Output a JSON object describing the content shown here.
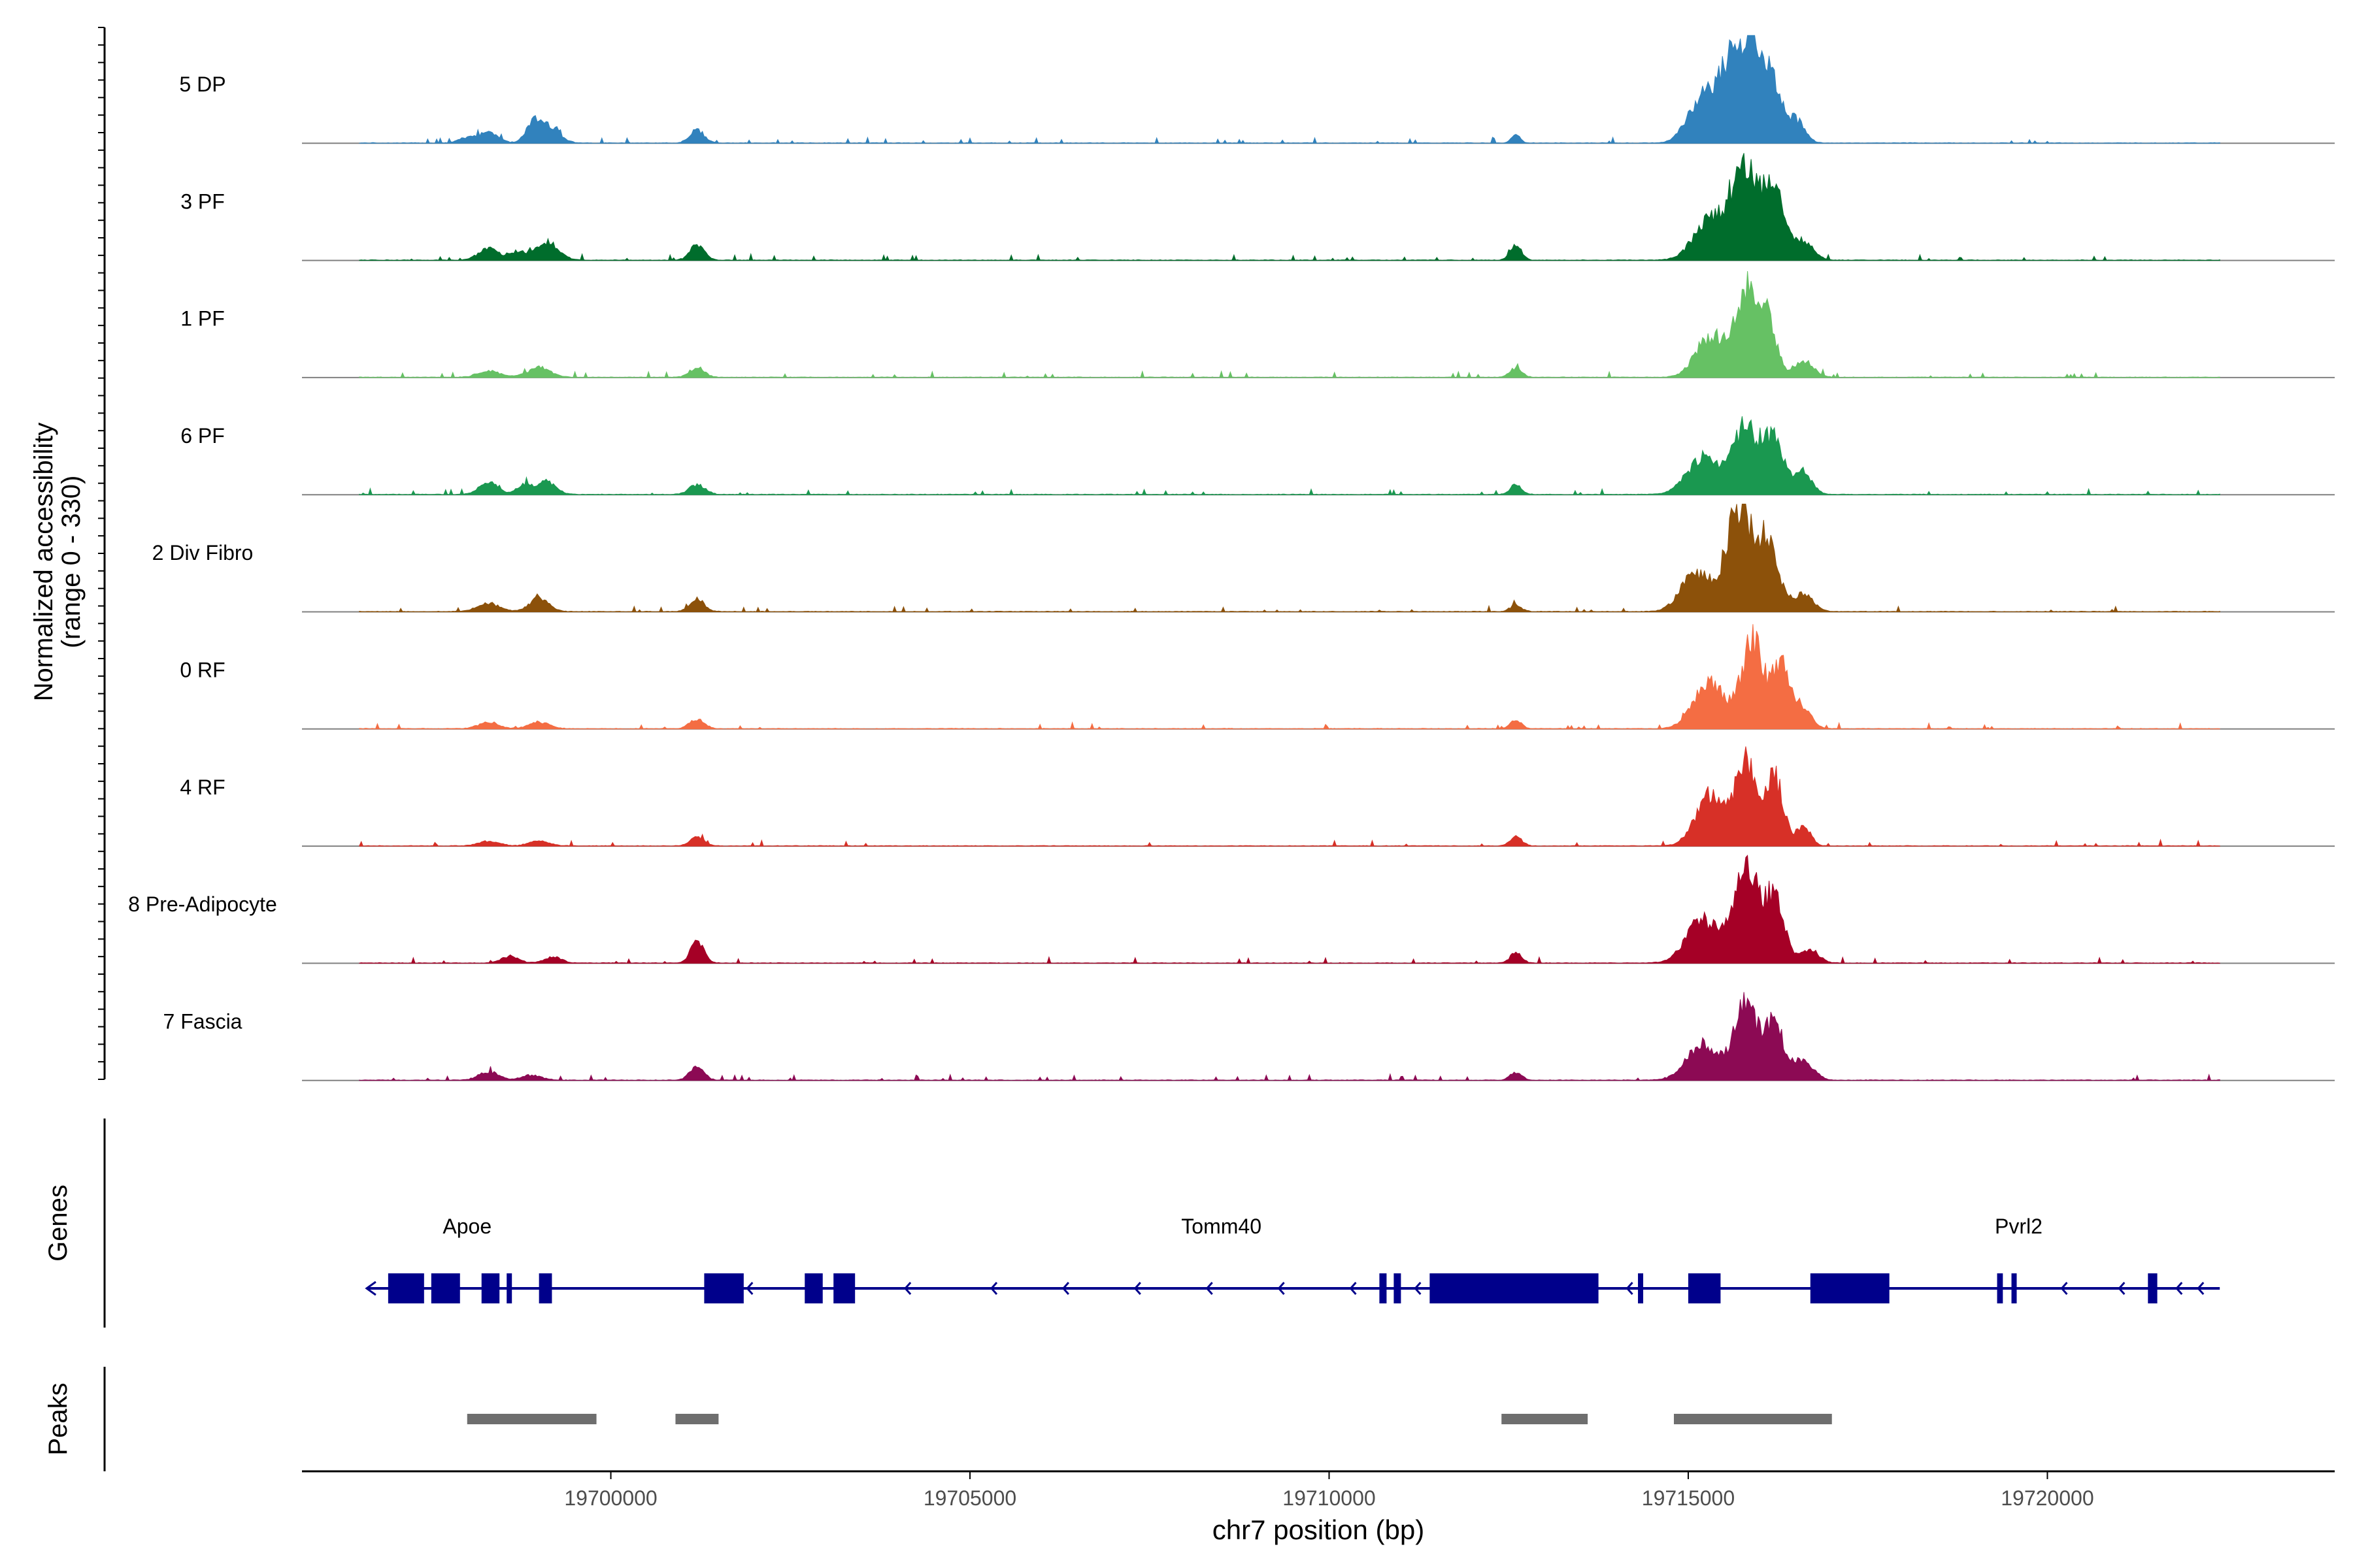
{
  "chart_data": {
    "type": "area",
    "title": "",
    "xlabel": "chr7 position (bp)",
    "ylabel": "Normalized accessibility",
    "ylabel_range": "(range 0 - 330)",
    "xlim": [
      19695700,
      19724000
    ],
    "ylim": [
      0,
      330
    ],
    "x_ticks": [
      19700000,
      19705000,
      19710000,
      19715000,
      19720000
    ],
    "x_tick_labels": [
      "19700000",
      "19705000",
      "19710000",
      "19715000",
      "19720000"
    ],
    "series": [
      {
        "name": "5 DP",
        "color": "#3182bd",
        "peaks": [
          [
            19698000,
            15,
            120
          ],
          [
            19698300,
            35,
            130
          ],
          [
            19698900,
            40,
            90
          ],
          [
            19699100,
            60,
            160
          ],
          [
            19701200,
            40,
            100
          ],
          [
            19715200,
            140,
            200
          ],
          [
            19715600,
            230,
            160
          ],
          [
            19715900,
            300,
            150
          ],
          [
            19716200,
            160,
            120
          ],
          [
            19716500,
            70,
            120
          ],
          [
            19712600,
            25,
            60
          ]
        ]
      },
      {
        "name": "3 PF",
        "color": "#006d2c",
        "peaks": [
          [
            19698300,
            35,
            140
          ],
          [
            19698700,
            25,
            100
          ],
          [
            19699100,
            55,
            160
          ],
          [
            19701200,
            45,
            100
          ],
          [
            19712600,
            45,
            80
          ],
          [
            19715300,
            120,
            220
          ],
          [
            19715800,
            280,
            200
          ],
          [
            19716200,
            200,
            130
          ],
          [
            19716600,
            60,
            140
          ]
        ]
      },
      {
        "name": "1 PF",
        "color": "#66c164",
        "peaks": [
          [
            19698300,
            20,
            150
          ],
          [
            19699000,
            30,
            160
          ],
          [
            19701200,
            30,
            100
          ],
          [
            19712600,
            30,
            80
          ],
          [
            19715300,
            120,
            200
          ],
          [
            19715800,
            260,
            160
          ],
          [
            19716100,
            170,
            120
          ],
          [
            19716600,
            50,
            140
          ]
        ]
      },
      {
        "name": "6 PF",
        "color": "#1a9850",
        "peaks": [
          [
            19698300,
            40,
            130
          ],
          [
            19698800,
            30,
            100
          ],
          [
            19699100,
            40,
            130
          ],
          [
            19701200,
            30,
            110
          ],
          [
            19712600,
            30,
            80
          ],
          [
            19715200,
            110,
            220
          ],
          [
            19715800,
            200,
            200
          ],
          [
            19716200,
            150,
            140
          ],
          [
            19716600,
            70,
            120
          ]
        ]
      },
      {
        "name": "2 Div Fibro",
        "color": "#8c510a",
        "peaks": [
          [
            19698300,
            25,
            160
          ],
          [
            19699000,
            40,
            130
          ],
          [
            19701200,
            40,
            100
          ],
          [
            19712600,
            20,
            80
          ],
          [
            19715100,
            120,
            200
          ],
          [
            19715700,
            300,
            180
          ],
          [
            19716100,
            200,
            160
          ],
          [
            19716600,
            50,
            140
          ]
        ]
      },
      {
        "name": "0 RF",
        "color": "#f46d43",
        "peaks": [
          [
            19698300,
            20,
            140
          ],
          [
            19699000,
            20,
            140
          ],
          [
            19701200,
            30,
            100
          ],
          [
            19712600,
            25,
            80
          ],
          [
            19715300,
            140,
            220
          ],
          [
            19715900,
            270,
            150
          ],
          [
            19716300,
            200,
            120
          ],
          [
            19716600,
            60,
            120
          ]
        ]
      },
      {
        "name": "4 RF",
        "color": "#d73027",
        "peaks": [
          [
            19698300,
            15,
            140
          ],
          [
            19699000,
            15,
            140
          ],
          [
            19701200,
            25,
            100
          ],
          [
            19712600,
            30,
            80
          ],
          [
            19715300,
            150,
            200
          ],
          [
            19715800,
            260,
            140
          ],
          [
            19716200,
            210,
            120
          ],
          [
            19716600,
            60,
            100
          ]
        ]
      },
      {
        "name": "8 Pre-Adipocyte",
        "color": "#a50026",
        "peaks": [
          [
            19698600,
            20,
            120
          ],
          [
            19699200,
            18,
            120
          ],
          [
            19701200,
            70,
            90
          ],
          [
            19712600,
            30,
            80
          ],
          [
            19715200,
            130,
            220
          ],
          [
            19715800,
            280,
            180
          ],
          [
            19716200,
            180,
            140
          ],
          [
            19716700,
            40,
            120
          ]
        ]
      },
      {
        "name": "7 Fascia",
        "color": "#8c0a54",
        "peaks": [
          [
            19698300,
            25,
            140
          ],
          [
            19698900,
            15,
            140
          ],
          [
            19701200,
            40,
            100
          ],
          [
            19712600,
            25,
            80
          ],
          [
            19715200,
            110,
            220
          ],
          [
            19715800,
            230,
            160
          ],
          [
            19716200,
            170,
            130
          ],
          [
            19716600,
            60,
            140
          ]
        ]
      }
    ],
    "genes": {
      "label": "Genes",
      "names": [
        {
          "name": "Apoe",
          "x": 19698000
        },
        {
          "name": "Tomm40",
          "x": 19708500
        },
        {
          "name": "Pvrl2",
          "x": 19719600
        }
      ],
      "line": [
        19696600,
        19722400
      ],
      "exons": [
        [
          19696900,
          19697400
        ],
        [
          19697500,
          19697900
        ],
        [
          19698200,
          19698450
        ],
        [
          19698550,
          19698620
        ],
        [
          19699000,
          19699180
        ],
        [
          19701300,
          19701850
        ],
        [
          19702700,
          19702950
        ],
        [
          19703100,
          19703400
        ],
        [
          19710700,
          19710800
        ],
        [
          19710900,
          19711000
        ],
        [
          19711400,
          19713750
        ],
        [
          19714300,
          19714340
        ],
        [
          19715000,
          19715450
        ],
        [
          19716700,
          19717800
        ],
        [
          19719300,
          19719380
        ],
        [
          19719500,
          19719570
        ],
        [
          19721400,
          19721530
        ]
      ],
      "arrows": [
        19697300,
        19701900,
        19702800,
        19704100,
        19705300,
        19706300,
        19707300,
        19708300,
        19709300,
        19710300,
        19711200,
        19714150,
        19720200,
        19721000,
        19721800,
        19722100
      ]
    },
    "peaks_track": {
      "label": "Peaks",
      "regions": [
        [
          19698000,
          19699800
        ],
        [
          19700900,
          19701500
        ],
        [
          19712400,
          19713600
        ],
        [
          19714800,
          19717000
        ]
      ]
    }
  }
}
